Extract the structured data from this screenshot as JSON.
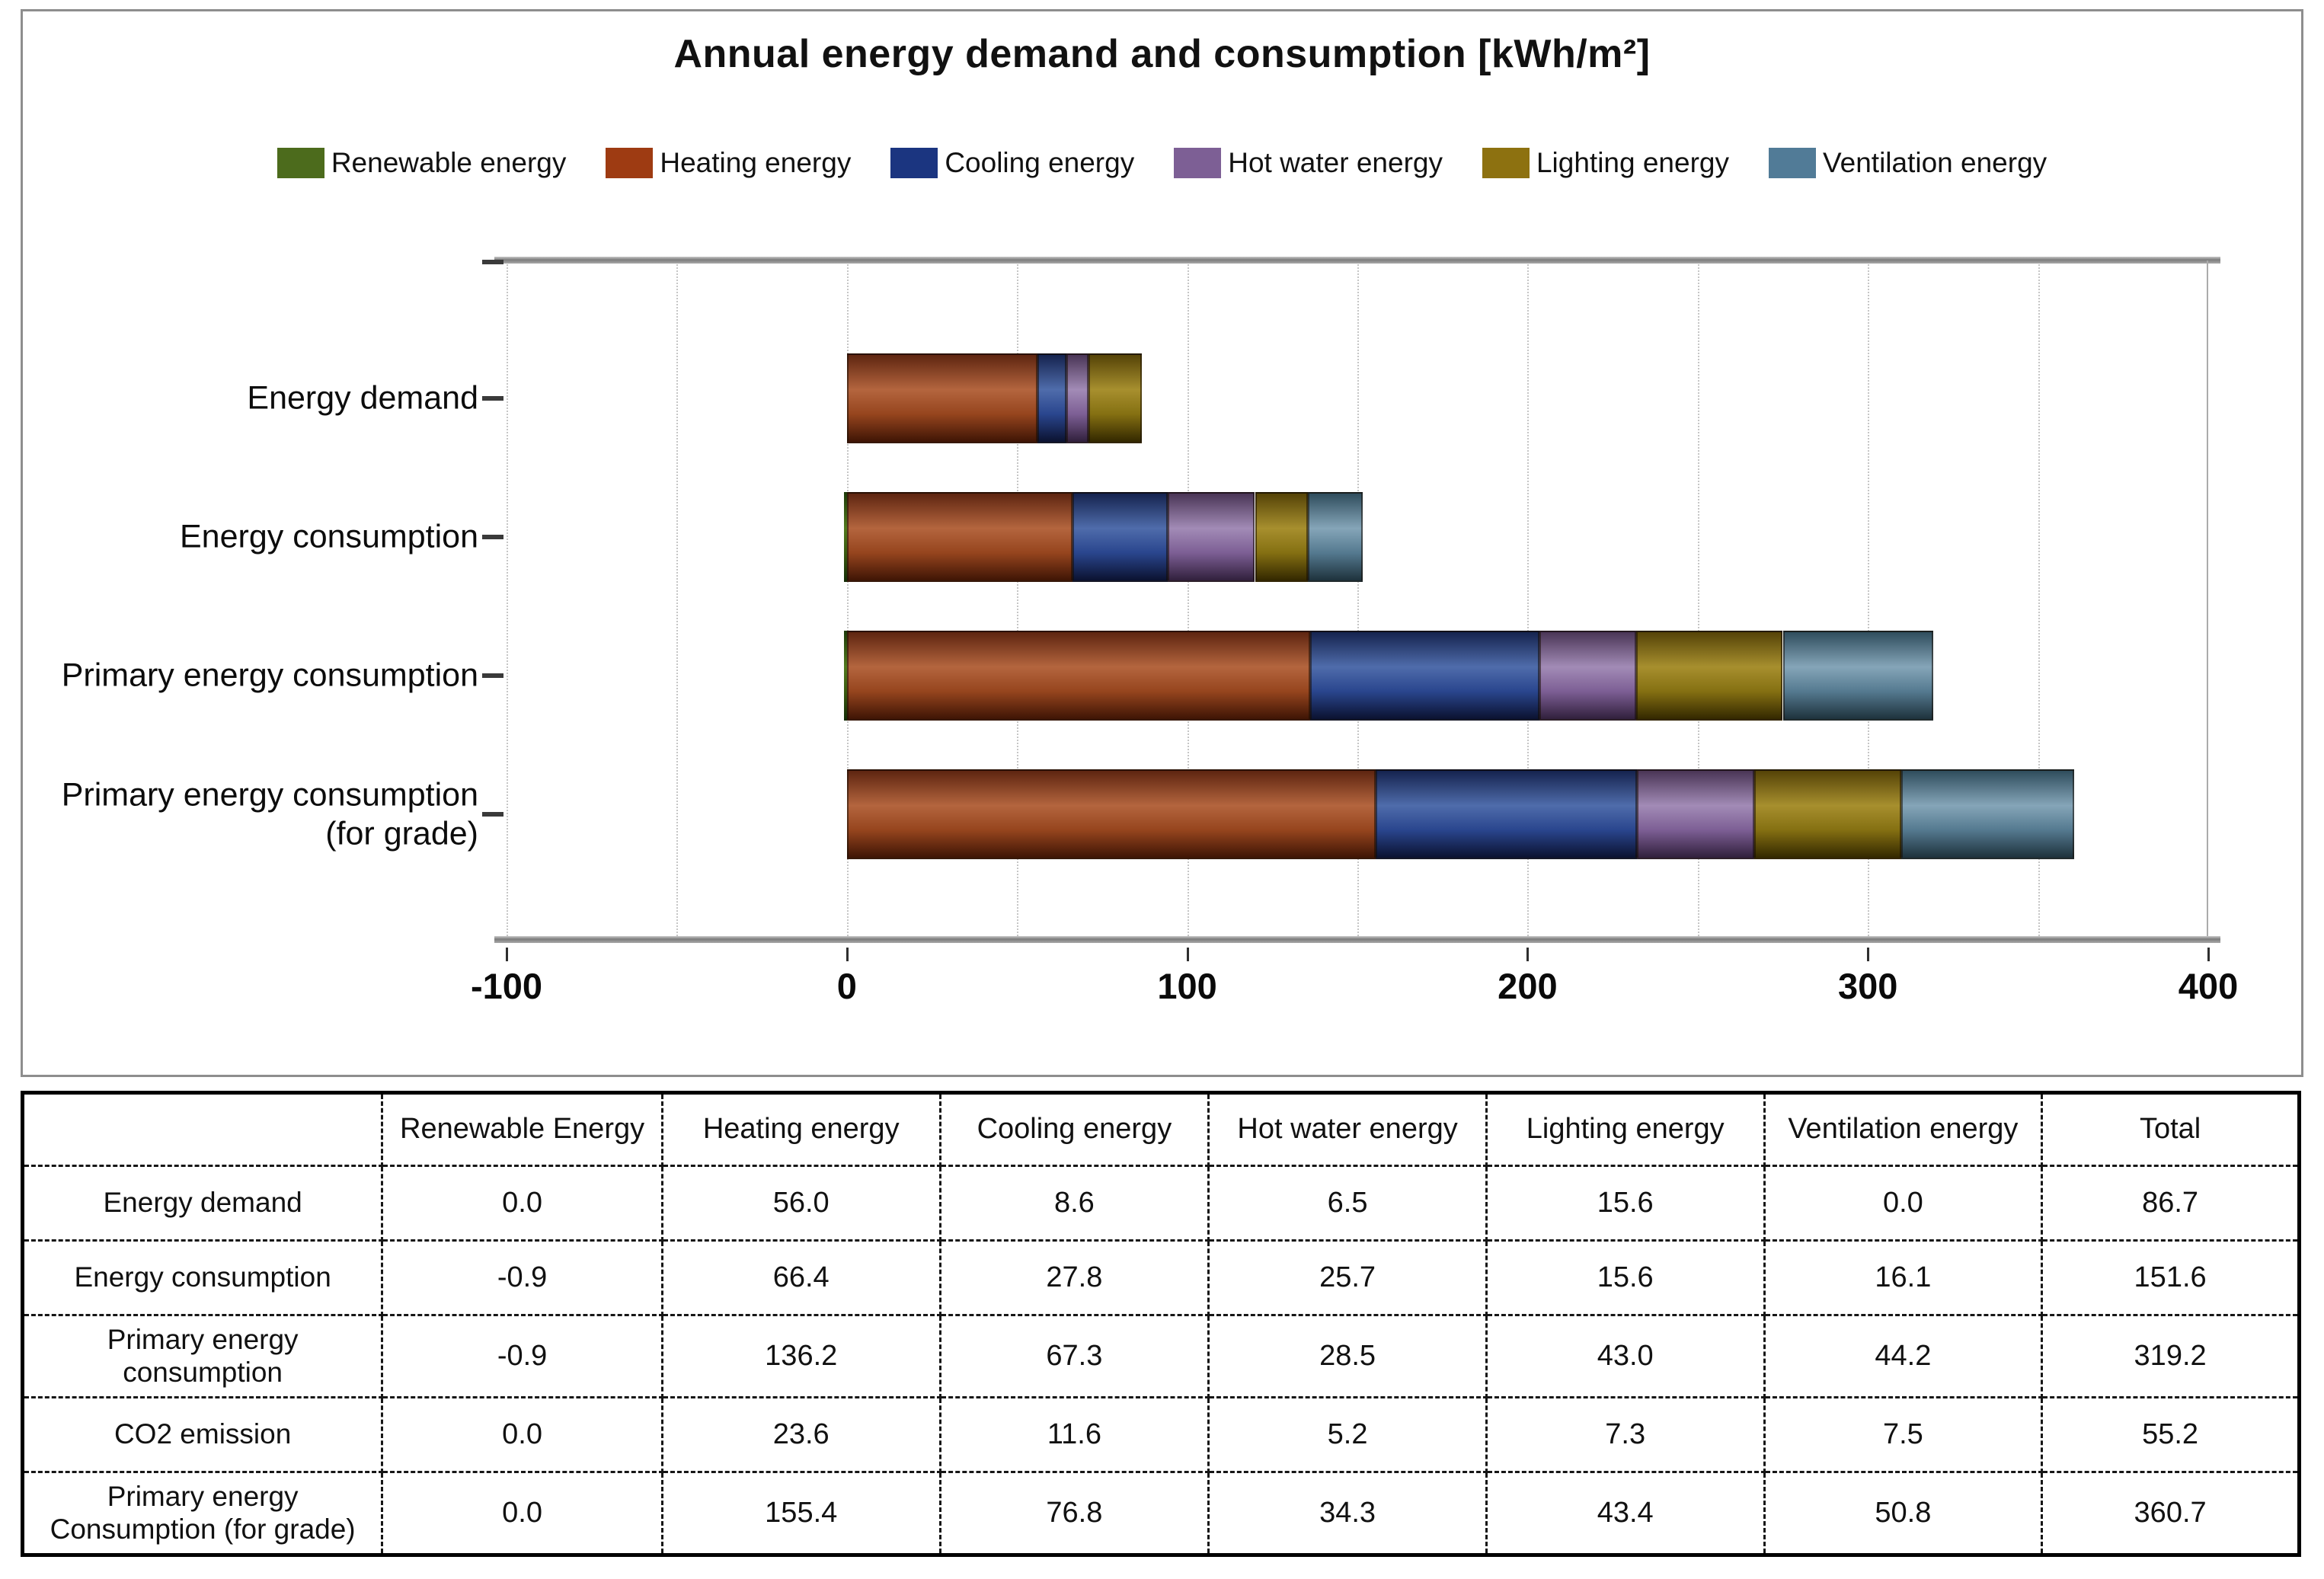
{
  "chart_data": {
    "type": "bar",
    "orientation": "horizontal",
    "stacked": true,
    "title": "Annual energy demand and consumption [kWh/m²]",
    "legend_position": "top",
    "grid": "dotted-vertical",
    "categories": [
      "Energy demand",
      "Energy consumption",
      "Primary energy consumption",
      "Primary energy consumption\n(for grade)"
    ],
    "series": [
      {
        "name": "Renewable energy",
        "color": "#4c6b1c",
        "gradient": [
          "#1d3a09",
          "#527a1e",
          "#3a5a10",
          "#142c06"
        ],
        "values": [
          0.0,
          -0.9,
          -0.9,
          0.0
        ]
      },
      {
        "name": "Heating energy",
        "color": "#9e3b12",
        "gradient": [
          "#5e2510",
          "#b4653e",
          "#96451e",
          "#3f1505"
        ],
        "values": [
          56.0,
          66.4,
          136.2,
          155.4
        ]
      },
      {
        "name": "Cooling energy",
        "color": "#1b3580",
        "gradient": [
          "#15234f",
          "#4f6cab",
          "#2a468e",
          "#0b1230"
        ],
        "values": [
          8.6,
          27.8,
          67.3,
          76.8
        ]
      },
      {
        "name": "Hot water energy",
        "color": "#7d5f95",
        "gradient": [
          "#4a3556",
          "#a28bb6",
          "#7d5f95",
          "#31203c"
        ],
        "values": [
          6.5,
          25.7,
          28.5,
          34.3
        ]
      },
      {
        "name": "Lighting energy",
        "color": "#8d7110",
        "gradient": [
          "#554307",
          "#a78f2e",
          "#857012",
          "#332800"
        ],
        "values": [
          15.6,
          15.6,
          43.0,
          43.4
        ]
      },
      {
        "name": "Ventilation energy",
        "color": "#517b97",
        "gradient": [
          "#2f4d5d",
          "#85a5b8",
          "#557a90",
          "#1e323c"
        ],
        "values": [
          0.0,
          16.1,
          44.2,
          50.8
        ]
      }
    ],
    "xlim": [
      -100,
      400
    ],
    "x_ticks": [
      -100,
      0,
      100,
      200,
      300,
      400
    ],
    "grid_step": 50
  },
  "table": {
    "headers": [
      "",
      "Renewable Energy",
      "Heating energy",
      "Cooling energy",
      "Hot water energy",
      "Lighting energy",
      "Ventilation energy",
      "Total"
    ],
    "col_widths": [
      "15.8%",
      "12.3%",
      "12.2%",
      "11.8%",
      "12.2%",
      "12.2%",
      "12.2%",
      "11.3%"
    ],
    "rows": [
      {
        "label": "Energy demand",
        "values": [
          "0.0",
          "56.0",
          "8.6",
          "6.5",
          "15.6",
          "0.0",
          "86.7"
        ]
      },
      {
        "label": "Energy consumption",
        "values": [
          "-0.9",
          "66.4",
          "27.8",
          "25.7",
          "15.6",
          "16.1",
          "151.6"
        ]
      },
      {
        "label": "Primary energy\nconsumption",
        "values": [
          "-0.9",
          "136.2",
          "67.3",
          "28.5",
          "43.0",
          "44.2",
          "319.2"
        ]
      },
      {
        "label": "CO2 emission",
        "values": [
          "0.0",
          "23.6",
          "11.6",
          "5.2",
          "7.3",
          "7.5",
          "55.2"
        ]
      },
      {
        "label": "Primary energy\nConsumption (for grade)",
        "values": [
          "0.0",
          "155.4",
          "76.8",
          "34.3",
          "43.4",
          "50.8",
          "360.7"
        ]
      }
    ]
  }
}
